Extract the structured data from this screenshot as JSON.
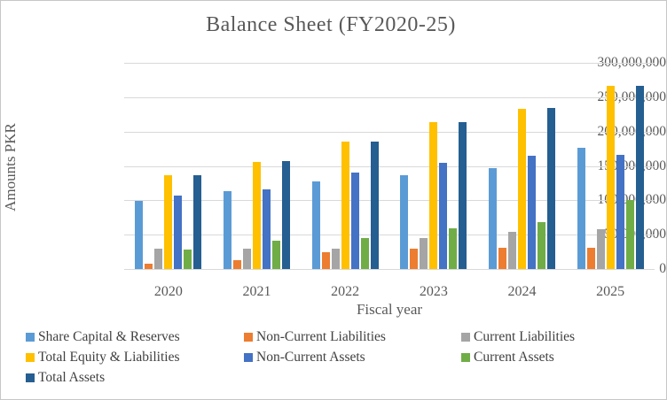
{
  "chart_data": {
    "type": "bar",
    "title": "Balance Sheet (FY2020-25)",
    "xlabel": "Fiscal year",
    "ylabel": "Amounts PKR",
    "categories": [
      "2020",
      "2021",
      "2022",
      "2023",
      "2024",
      "2025"
    ],
    "series": [
      {
        "name": "Share Capital & Reserves",
        "color": "#5B9BD5",
        "values": [
          99000000,
          113000000,
          128000000,
          137000000,
          147000000,
          176000000
        ]
      },
      {
        "name": "Non-Current Liabilities",
        "color": "#ED7D31",
        "values": [
          8000000,
          13000000,
          25000000,
          29000000,
          31000000,
          31000000
        ]
      },
      {
        "name": "Current Liabilities",
        "color": "#A5A5A5",
        "values": [
          29000000,
          30000000,
          30000000,
          45000000,
          54000000,
          58000000
        ]
      },
      {
        "name": "Total Equity & Liabilities",
        "color": "#FFC000",
        "values": [
          136000000,
          156000000,
          185000000,
          214000000,
          233000000,
          266000000
        ]
      },
      {
        "name": "Non-Current Assets",
        "color": "#4472C4",
        "values": [
          107000000,
          116000000,
          140000000,
          154000000,
          165000000,
          166000000
        ]
      },
      {
        "name": "Current Assets",
        "color": "#70AD47",
        "values": [
          28000000,
          41000000,
          45000000,
          59000000,
          68000000,
          100000000
        ]
      },
      {
        "name": "Total Assets",
        "color": "#255E91",
        "values": [
          136000000,
          157000000,
          185000000,
          214000000,
          234000000,
          266000000
        ]
      }
    ],
    "ylim": [
      0,
      300000000
    ],
    "ytick_labels": [
      "300,000,000",
      "250,000,000",
      "200,000,000",
      "150,000,000",
      "100,000,000",
      "50,000,000",
      "0"
    ],
    "grid": true,
    "legend_position": "bottom"
  },
  "colors": {
    "gridline": "#D9D9D9",
    "axis_line": "#D9D9D9",
    "axis_text": "#595959",
    "legend_text": "#404040",
    "title_text": "#595959",
    "background": "#FFFFFF",
    "frame_border": "#C6C6C6"
  }
}
